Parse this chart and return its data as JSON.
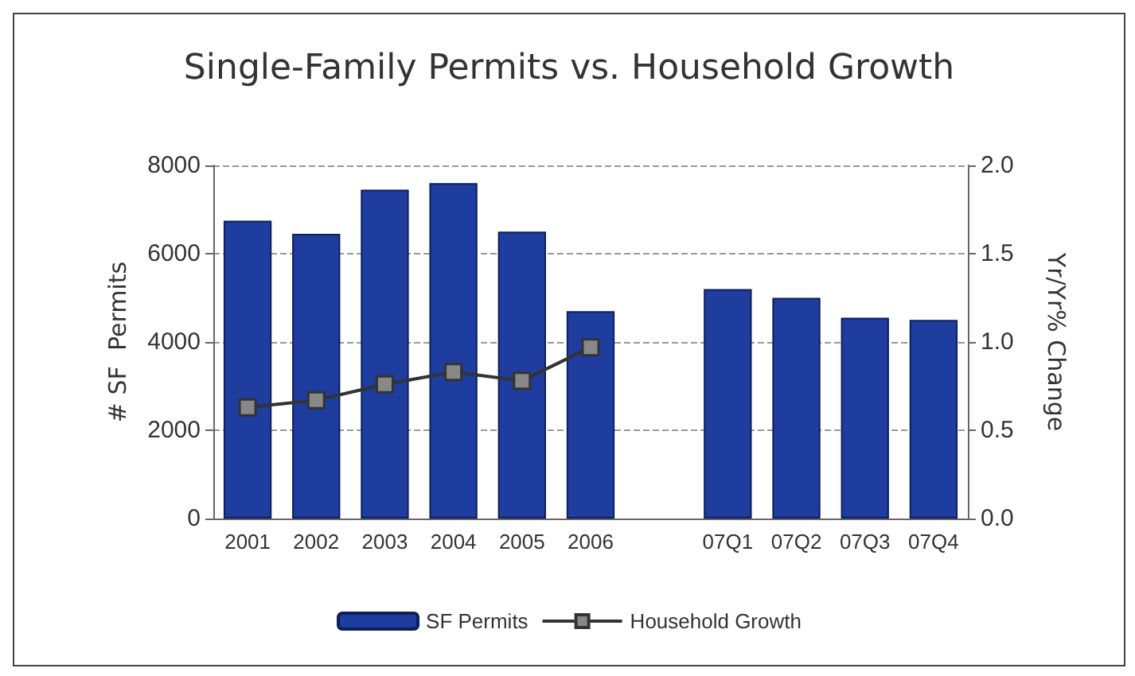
{
  "chart_data": {
    "type": "bar",
    "title": "Single-Family Permits vs. Household Growth",
    "ylabel": "# SF  Permits",
    "y2label": "Yr/Yr% Change",
    "categories": [
      "2001",
      "2002",
      "2003",
      "2004",
      "2005",
      "2006",
      null,
      "07Q1",
      "07Q2",
      "07Q3",
      "07Q4"
    ],
    "series": [
      {
        "name": "SF Permits",
        "color": "#1f3d9e",
        "values": [
          6750,
          6450,
          7450,
          7600,
          6500,
          4700,
          null,
          5200,
          5000,
          4550,
          4500
        ]
      },
      {
        "name": "Household Growth",
        "type": "line",
        "axis": "y2",
        "color": "#333333",
        "marker": "square",
        "values": [
          0.63,
          0.67,
          0.76,
          0.83,
          0.78,
          0.97,
          null,
          null,
          null,
          null,
          null
        ]
      }
    ],
    "ylim": [
      0,
      8000
    ],
    "yticks": [
      0,
      2000,
      4000,
      6000,
      8000
    ],
    "y2lim": [
      0,
      2.0
    ],
    "y2ticks": [
      {
        "value": 0,
        "label": "0.0"
      },
      {
        "value": 0.5,
        "label": "0.5"
      },
      {
        "value": 1,
        "label": "1.0"
      },
      {
        "value": 1.5,
        "label": "1.5"
      },
      {
        "value": 2,
        "label": "2.0"
      }
    ],
    "grid": "y",
    "legend": "bottom"
  }
}
